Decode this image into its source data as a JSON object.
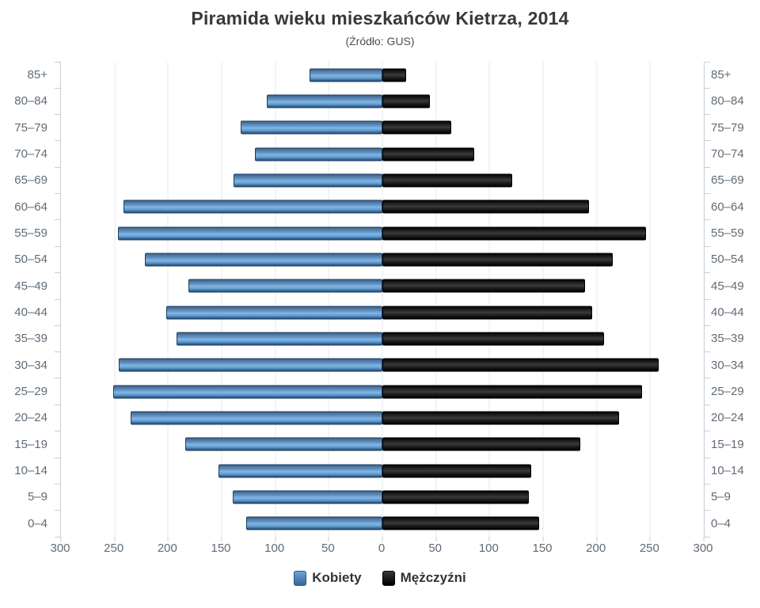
{
  "title": "Piramida wieku mieszkańców Kietrza, 2014",
  "subtitle": "(Źródło: GUS)",
  "colors": {
    "female_bar": "#4a80b8",
    "male_bar": "#161616",
    "gridline": "#e5e9ec",
    "axis_line": "#c9ced4",
    "axis_text": "#5f6b76",
    "title_text": "#383838"
  },
  "chart_data": {
    "type": "bar",
    "variant": "population-pyramid",
    "orientation": "horizontal",
    "title": "Piramida wieku mieszkańców Kietrza, 2014",
    "subtitle": "(Źródło: GUS)",
    "categories": [
      "85+",
      "80–84",
      "75–79",
      "70–74",
      "65–69",
      "60–64",
      "55–59",
      "50–54",
      "45–49",
      "40–44",
      "35–39",
      "30–34",
      "25–29",
      "20–24",
      "15–19",
      "10–14",
      "5–9",
      "0–4"
    ],
    "series": [
      {
        "name": "Kobiety",
        "side": "left",
        "color": "#4a80b8",
        "values": [
          68,
          108,
          132,
          119,
          139,
          242,
          247,
          222,
          181,
          202,
          192,
          246,
          251,
          235,
          184,
          153,
          140,
          127
        ]
      },
      {
        "name": "Mężczyźni",
        "side": "right",
        "color": "#161616",
        "values": [
          22,
          44,
          64,
          86,
          121,
          193,
          246,
          215,
          189,
          196,
          207,
          258,
          242,
          221,
          185,
          139,
          137,
          146
        ]
      }
    ],
    "x_axis": {
      "ticks": [
        "300",
        "250",
        "200",
        "150",
        "100",
        "50",
        "0",
        "50",
        "100",
        "150",
        "200",
        "250",
        "300"
      ],
      "max_per_side": 300
    },
    "grid": true,
    "legend_position": "bottom"
  }
}
